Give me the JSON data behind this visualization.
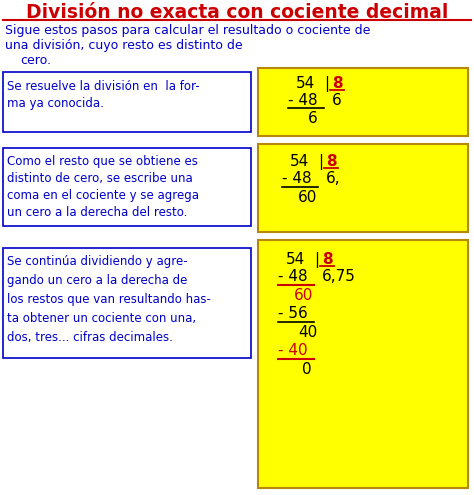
{
  "title": "División no exacta con cociente decimal",
  "title_color": "#cc0000",
  "bg_color": "#ffffff",
  "box_border_color": "#0000cc",
  "box_bg_color": "#ffffff",
  "yellow_bg": "#ffff00",
  "yellow_border": "#b8860b",
  "blue_text": "#0000cc",
  "red_text": "#cc0000",
  "black_text": "#000000",
  "intro_lines": [
    "Sigue estos pasos para calcular el resultado o cociente de",
    "una división, cuyo resto es distinto de",
    "cero."
  ],
  "box1_lines": [
    "Se resuelve la división en  la for-",
    "ma ya conocida."
  ],
  "box2_lines": [
    "Como el resto que se obtiene es",
    "distinto de cero, se escribe una",
    "coma en el cociente y se agrega",
    "un cero a la derecha del resto."
  ],
  "box3_lines": [
    "Se continúa dividiendo y agre-",
    "gando un cero a la derecha de",
    "los restos que van resultando has-",
    "ta obtener un cociente con una,",
    "dos, tres... cifras decimales."
  ]
}
